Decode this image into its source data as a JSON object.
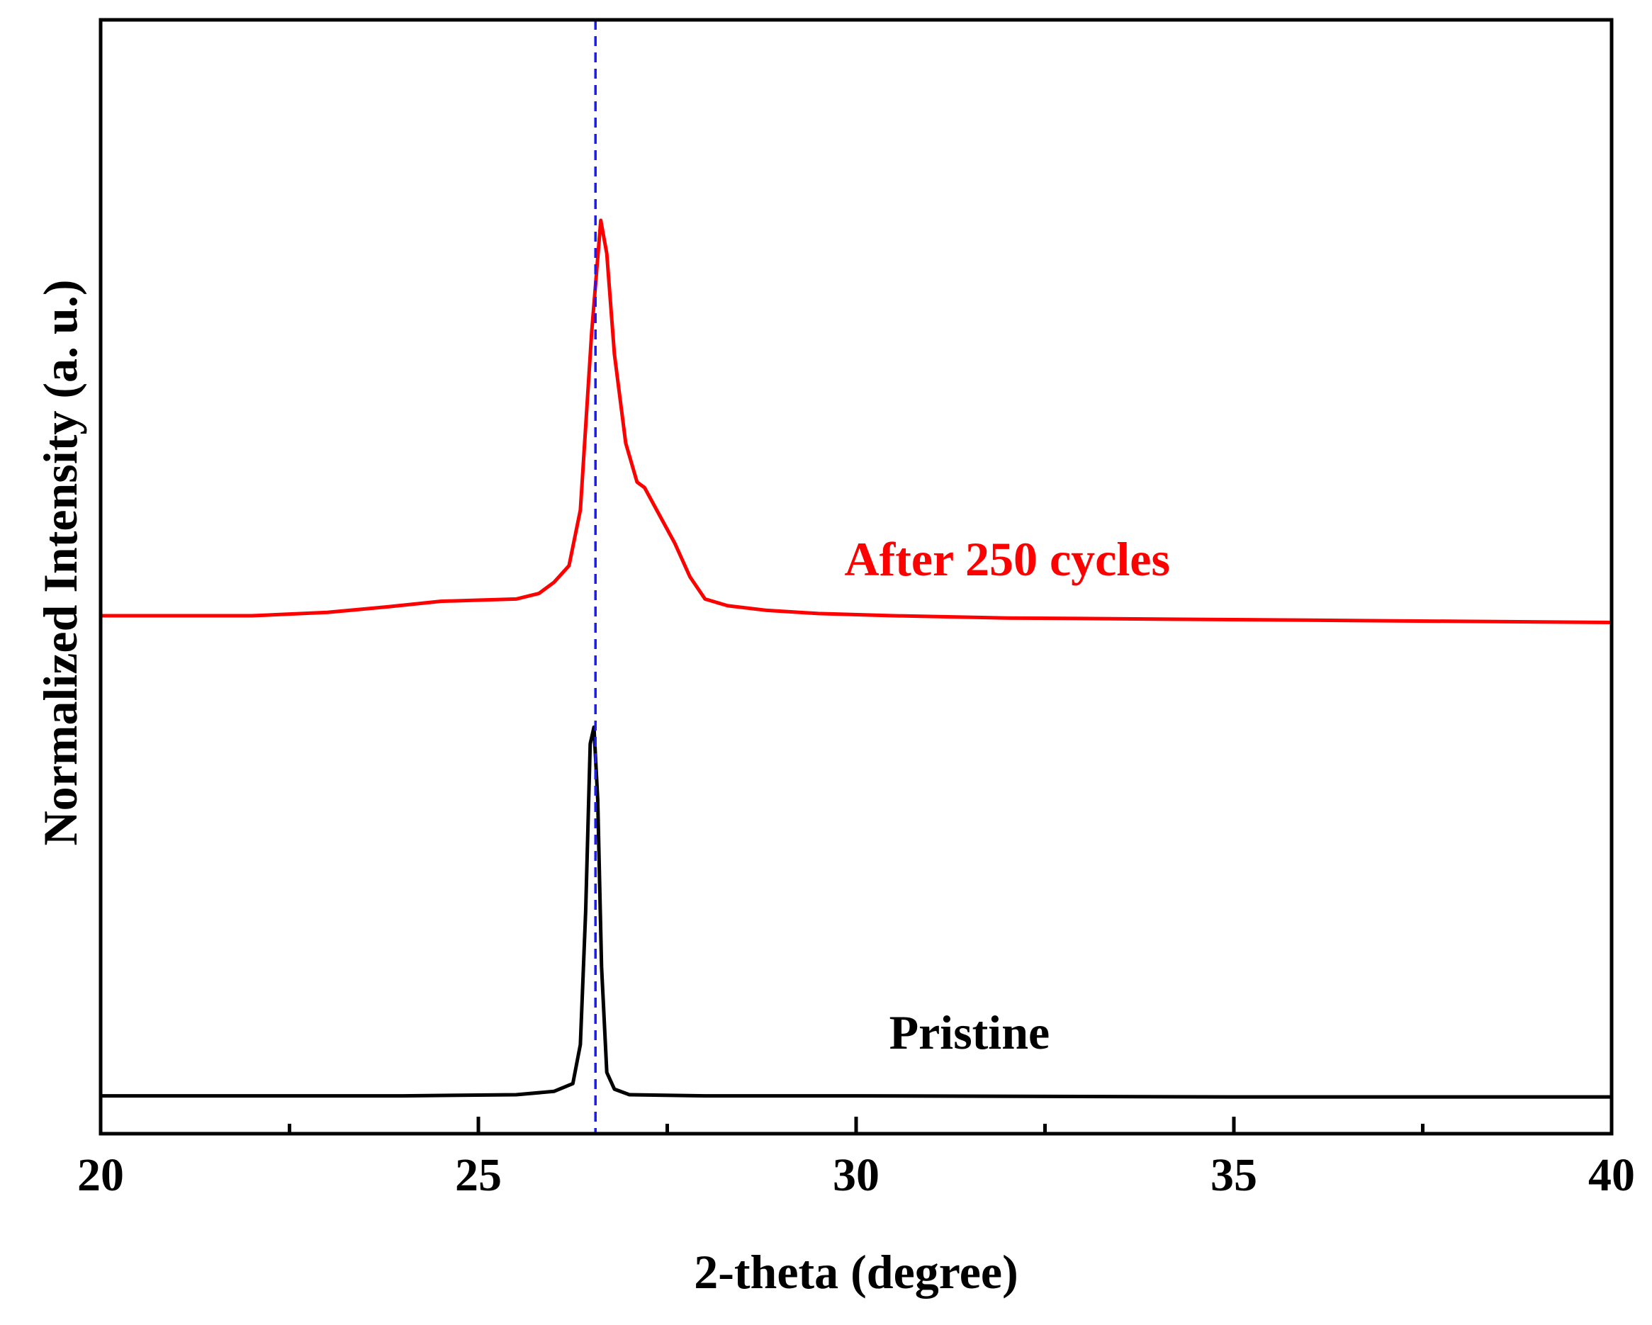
{
  "chart_data": {
    "type": "line",
    "title": "",
    "xlabel": "2-theta (degree)",
    "ylabel": "Normalized Intensity (a. u.)",
    "xlim": [
      20,
      40
    ],
    "ylim": [
      0,
      1.0
    ],
    "xticks": [
      20,
      25,
      30,
      35,
      40
    ],
    "minor_xticks": [
      22.5,
      27.5,
      32.5,
      37.5
    ],
    "yticks_shown": false,
    "reference_line": {
      "x": 26.55,
      "style": "dashed",
      "color": "#1a1aff"
    },
    "series": [
      {
        "name": "After 250 cycles",
        "color": "#ff0000",
        "x": [
          20.0,
          21.0,
          22.0,
          23.0,
          23.8,
          24.5,
          25.0,
          25.5,
          25.8,
          26.0,
          26.2,
          26.35,
          26.5,
          26.62,
          26.7,
          26.8,
          26.95,
          27.1,
          27.2,
          27.4,
          27.6,
          27.8,
          28.0,
          28.3,
          28.8,
          29.5,
          30.5,
          32.0,
          34.0,
          36.0,
          38.0,
          40.0
        ],
        "y": [
          0.465,
          0.465,
          0.465,
          0.468,
          0.473,
          0.478,
          0.479,
          0.48,
          0.485,
          0.495,
          0.51,
          0.56,
          0.72,
          0.82,
          0.79,
          0.7,
          0.62,
          0.585,
          0.58,
          0.555,
          0.53,
          0.5,
          0.48,
          0.474,
          0.47,
          0.467,
          0.465,
          0.463,
          0.462,
          0.461,
          0.46,
          0.459
        ]
      },
      {
        "name": "Pristine",
        "color": "#000000",
        "x": [
          20.0,
          22.0,
          24.0,
          25.5,
          26.0,
          26.25,
          26.35,
          26.42,
          26.48,
          26.53,
          26.58,
          26.63,
          26.7,
          26.8,
          27.0,
          28.0,
          30.0,
          35.0,
          40.0
        ],
        "y": [
          0.034,
          0.034,
          0.034,
          0.035,
          0.038,
          0.045,
          0.08,
          0.2,
          0.35,
          0.365,
          0.3,
          0.15,
          0.055,
          0.04,
          0.035,
          0.034,
          0.034,
          0.033,
          0.033
        ]
      }
    ]
  },
  "labels": {
    "after": "After 250 cycles",
    "pristine": "Pristine"
  },
  "colors": {
    "after": "#ff0000",
    "pristine": "#000000",
    "reference": "#1a1aff",
    "axes": "#000000"
  }
}
